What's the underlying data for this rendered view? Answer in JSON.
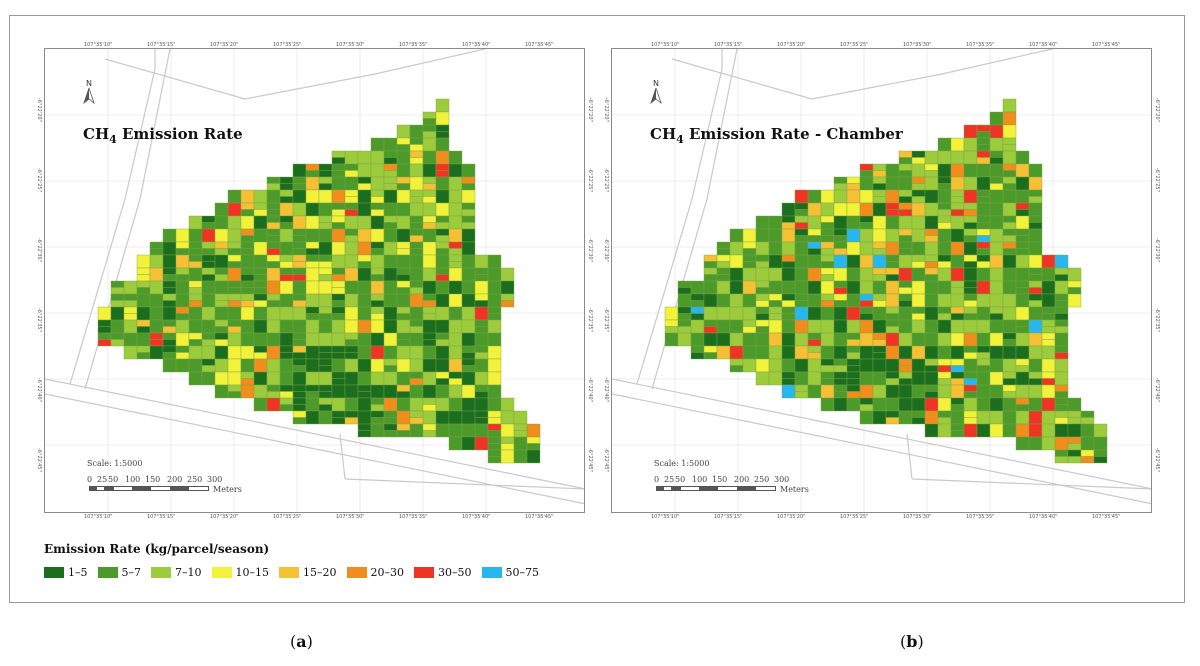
{
  "panels": [
    {
      "id": "a",
      "title_main": "CH",
      "title_sub": "4",
      "title_rest": " Emission Rate",
      "caption_letter": "a",
      "seed": 11,
      "distribution": [
        0.17,
        0.38,
        0.25,
        0.1,
        0.05,
        0.03,
        0.02,
        0.0
      ]
    },
    {
      "id": "b",
      "title_main": "CH",
      "title_sub": "4",
      "title_rest": " Emission Rate - Chamber",
      "caption_letter": "b",
      "seed": 29,
      "distribution": [
        0.16,
        0.37,
        0.22,
        0.1,
        0.05,
        0.04,
        0.045,
        0.015
      ]
    }
  ],
  "north_label": "N",
  "scale": {
    "title": "Scale: 1:5000",
    "ticks": [
      "0",
      "25",
      "50",
      "100",
      "150",
      "200",
      "250",
      "300"
    ],
    "unit": "Meters"
  },
  "coords": {
    "top": [
      "107°35'10\"",
      "107°35'15\"",
      "107°35'20\"",
      "107°35'25\"",
      "107°35'30\"",
      "107°35'35\"",
      "107°35'40\"",
      "107°35'45\""
    ],
    "bottom": [
      "107°35'10\"",
      "107°35'15\"",
      "107°35'20\"",
      "107°35'25\"",
      "107°35'30\"",
      "107°35'35\"",
      "107°35'40\"",
      "107°35'45\""
    ],
    "side": [
      "-6°22'20\"",
      "-6°22'25\"",
      "-6°22'30\"",
      "-6°22'35\"",
      "-6°22'40\"",
      "-6°22'45\""
    ]
  },
  "legend": {
    "title": "Emission Rate (kg/parcel/season)",
    "items": [
      {
        "label": "1–5",
        "color": "#1a6e1e"
      },
      {
        "label": "5–7",
        "color": "#4c9a2a"
      },
      {
        "label": "7–10",
        "color": "#9ccb3c"
      },
      {
        "label": "10–15",
        "color": "#f2f23a"
      },
      {
        "label": "15–20",
        "color": "#f5c034"
      },
      {
        "label": "20–30",
        "color": "#f18d1c"
      },
      {
        "label": "30–50",
        "color": "#ee3524"
      },
      {
        "label": "50–75",
        "color": "#27b7ef"
      }
    ]
  },
  "colors": {
    "road": "#c9c9c9",
    "grid": "#d9d9d9",
    "parcel_stroke": "#7fa24a"
  }
}
